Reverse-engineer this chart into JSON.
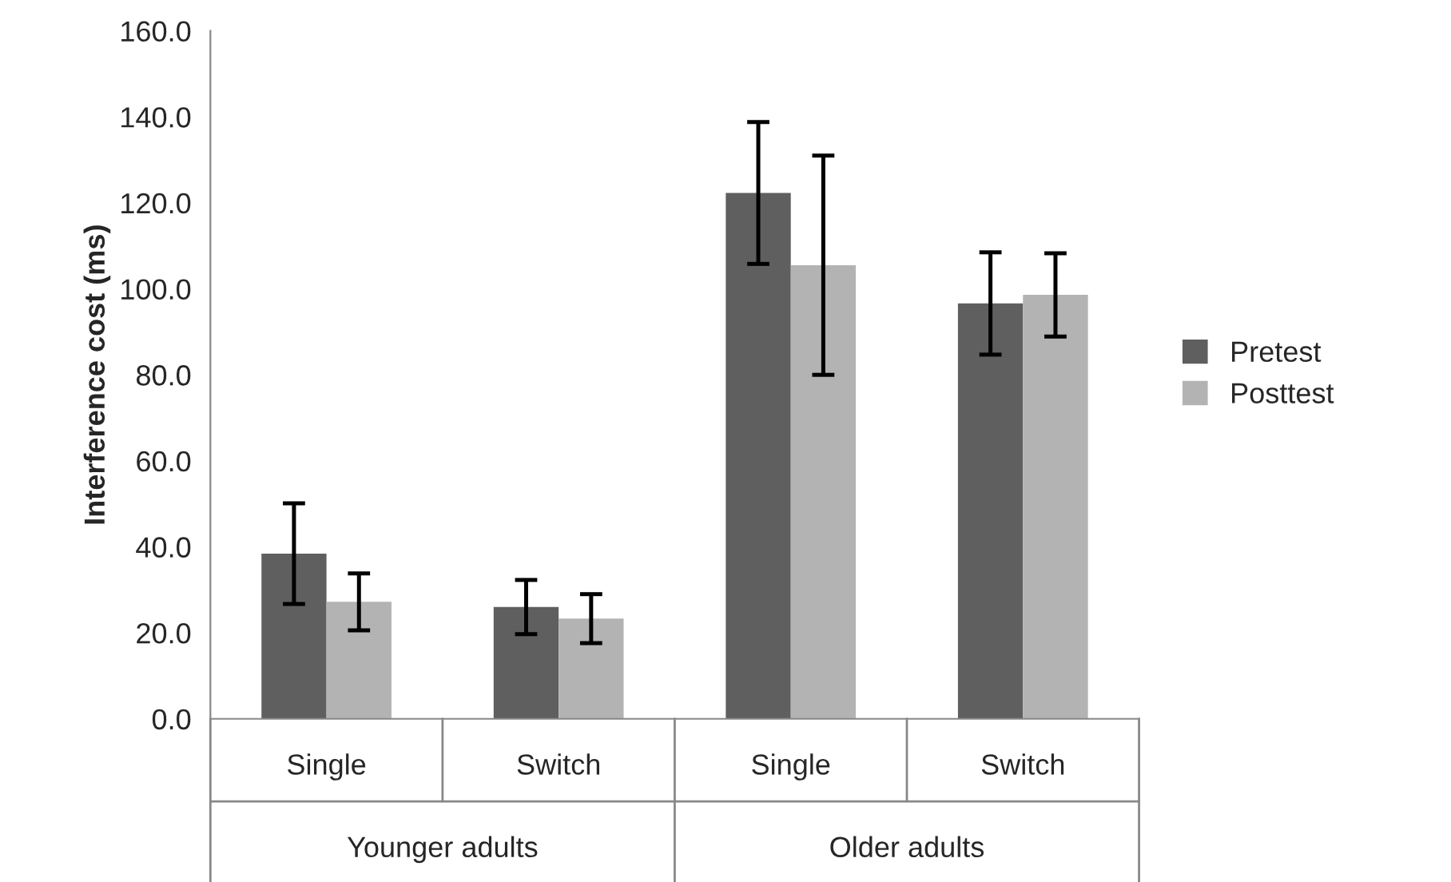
{
  "chart_data": {
    "type": "bar",
    "ylabel": "Interference cost (ms)",
    "categories": [
      "Single",
      "Switch",
      "Single",
      "Switch"
    ],
    "annotations": [
      "Younger adults",
      "Older adults"
    ],
    "series": [
      {
        "name": "Pretest",
        "color": "#5f5f5f",
        "values": [
          38.4,
          26.0,
          122.3,
          96.6
        ],
        "errors": [
          11.7,
          6.3,
          16.5,
          11.9
        ]
      },
      {
        "name": "Posttest",
        "color": "#b3b3b3",
        "values": [
          27.2,
          23.3,
          105.5,
          98.6
        ],
        "errors": [
          6.6,
          5.7,
          25.5,
          9.7
        ]
      }
    ],
    "ylim": [
      0,
      160
    ],
    "yticks": [
      {
        "value": 0,
        "label": "0.0"
      },
      {
        "value": 20,
        "label": "20.0"
      },
      {
        "value": 40,
        "label": "40.0"
      },
      {
        "value": 60,
        "label": "60.0"
      },
      {
        "value": 80,
        "label": "80.0"
      },
      {
        "value": 100,
        "label": "100.0"
      },
      {
        "value": 120,
        "label": "120.0"
      },
      {
        "value": 140,
        "label": "140.0"
      },
      {
        "value": 160,
        "label": "160.0"
      }
    ],
    "grid": false,
    "legend": "right"
  }
}
